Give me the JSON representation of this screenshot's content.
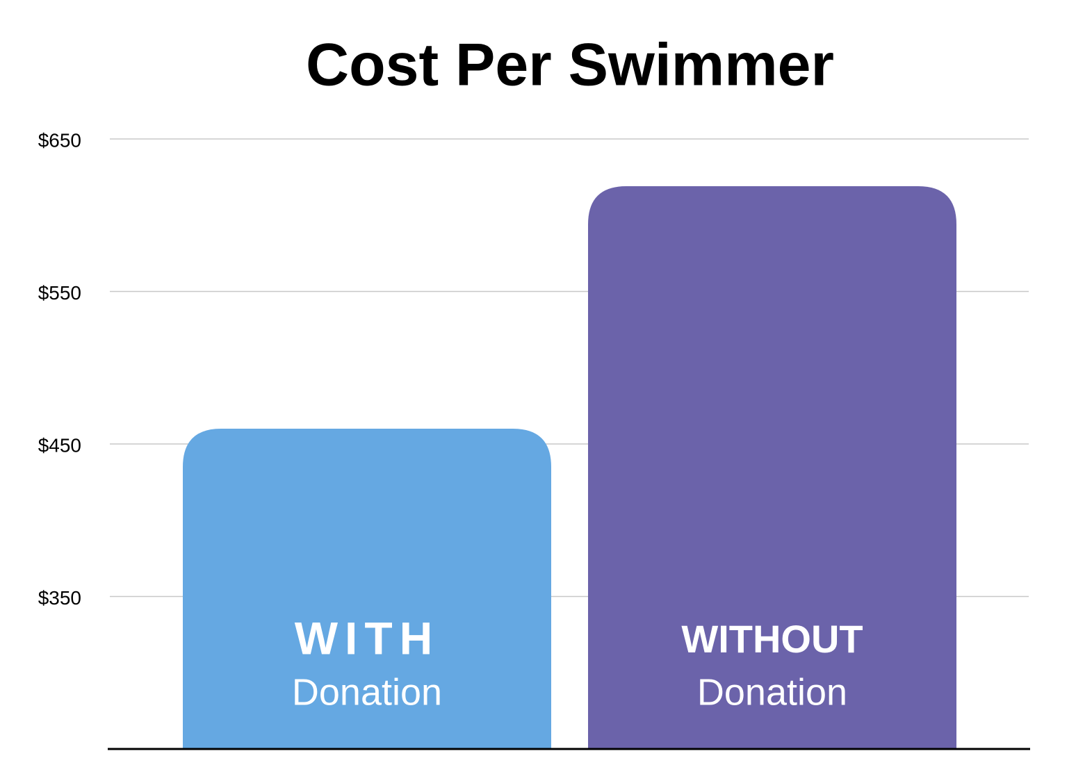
{
  "chart_data": {
    "type": "bar",
    "title": "Cost Per Swimmer",
    "categories": [
      "WITH",
      "WITHOUT"
    ],
    "category_subtitles": [
      "Donation",
      "Donation"
    ],
    "values": [
      460,
      619
    ],
    "colors": [
      "#65a8e2",
      "#6b63aa"
    ],
    "ylim": [
      250,
      650
    ],
    "yticks": [
      {
        "value": 350,
        "label": "$350"
      },
      {
        "value": 450,
        "label": "$450"
      },
      {
        "value": 550,
        "label": "$550"
      },
      {
        "value": 650,
        "label": "$650"
      }
    ],
    "grid": true
  }
}
